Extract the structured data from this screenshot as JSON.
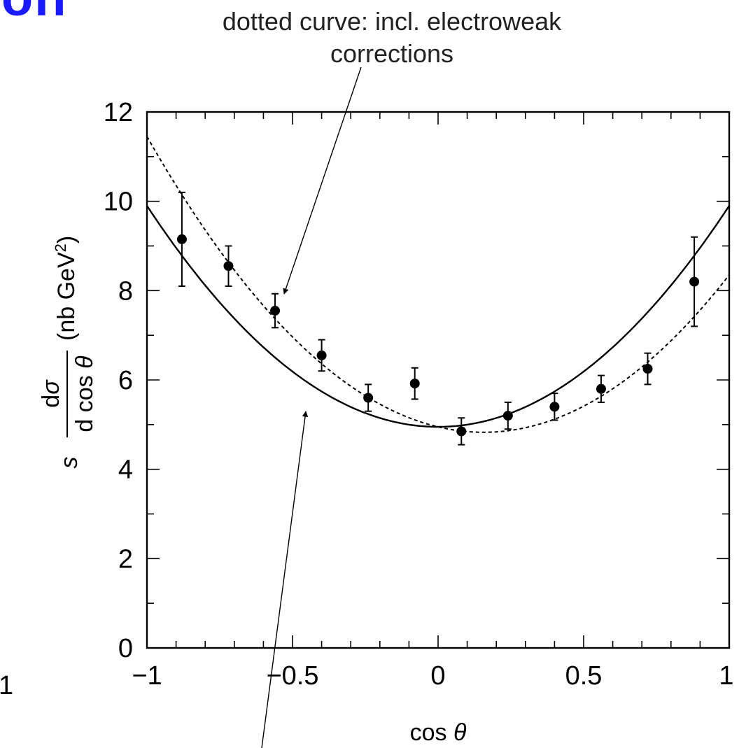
{
  "fragment_text": "on",
  "fragment_left_text": "1",
  "annotations": {
    "top_line1": "dotted curve: incl. electroweak",
    "top_line2": "corrections"
  },
  "chart_data": {
    "type": "scatter",
    "xlabel": "cos θ",
    "ylabel": "s dσ/d cos θ (nb GeV²)",
    "xlim": [
      -1,
      1
    ],
    "ylim": [
      0,
      12
    ],
    "xticks": [
      "−1",
      "−0.5",
      "0",
      "0.5",
      "1"
    ],
    "xtick_values": [
      -1,
      -0.5,
      0,
      0.5,
      1
    ],
    "yticks": [
      "0",
      "2",
      "4",
      "6",
      "8",
      "10",
      "12"
    ],
    "ytick_values": [
      0,
      2,
      4,
      6,
      8,
      10,
      12
    ],
    "grid": false,
    "series": [
      {
        "kind": "points_with_errors",
        "x": [
          -0.88,
          -0.72,
          -0.56,
          -0.4,
          -0.24,
          -0.08,
          0.08,
          0.24,
          0.4,
          0.56,
          0.72,
          0.88
        ],
        "y": [
          9.15,
          8.55,
          7.55,
          6.55,
          5.6,
          5.92,
          4.85,
          5.2,
          5.4,
          5.8,
          6.25,
          8.2
        ],
        "yerr": [
          1.05,
          0.45,
          0.38,
          0.35,
          0.3,
          0.35,
          0.3,
          0.3,
          0.3,
          0.3,
          0.35,
          1.0
        ]
      },
      {
        "kind": "curve",
        "style": "solid",
        "formula": "4.95*(1+x^2)",
        "x": [
          -1,
          -0.75,
          -0.5,
          -0.25,
          0,
          0.25,
          0.5,
          0.75,
          1
        ],
        "y": [
          9.9,
          7.73,
          6.19,
          5.26,
          4.95,
          5.26,
          6.19,
          7.73,
          9.9
        ]
      },
      {
        "kind": "curve",
        "style": "dotted",
        "formula": "4.95*(1+x^2) - 1.55*x",
        "x": [
          -1,
          -0.75,
          -0.5,
          -0.25,
          0,
          0.25,
          0.5,
          0.75,
          1
        ],
        "y": [
          11.45,
          8.89,
          6.96,
          5.65,
          4.95,
          4.87,
          5.41,
          6.57,
          8.35
        ]
      }
    ]
  }
}
